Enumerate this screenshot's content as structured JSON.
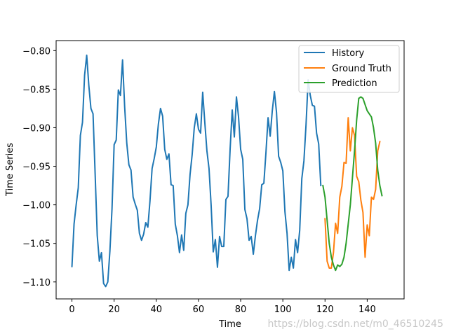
{
  "chart_data": {
    "type": "line",
    "title": "",
    "xlabel": "Time",
    "ylabel": "Time Series",
    "xlim": [
      -7.5,
      157.5
    ],
    "ylim": [
      -1.122,
      -0.787
    ],
    "x_ticks": [
      0,
      20,
      40,
      60,
      80,
      100,
      120,
      140
    ],
    "x_tick_labels": [
      "0",
      "20",
      "40",
      "60",
      "80",
      "100",
      "120",
      "140"
    ],
    "y_ticks": [
      -0.8,
      -0.85,
      -0.9,
      -0.95,
      -1.0,
      -1.05,
      -1.1
    ],
    "y_tick_labels": [
      "−0.80",
      "−0.85",
      "−0.90",
      "−0.95",
      "−1.00",
      "−1.05",
      "−1.10"
    ],
    "legend_position": "top-right",
    "grid": false,
    "series": [
      {
        "name": "History",
        "color": "#1f77b4",
        "x_start": 0,
        "values": [
          -1.08,
          -1.025,
          -1.0,
          -0.978,
          -0.91,
          -0.893,
          -0.832,
          -0.806,
          -0.845,
          -0.875,
          -0.882,
          -0.96,
          -1.04,
          -1.073,
          -1.062,
          -1.102,
          -1.106,
          -1.1,
          -1.06,
          -1.005,
          -0.922,
          -0.916,
          -0.851,
          -0.858,
          -0.812,
          -0.873,
          -0.92,
          -0.948,
          -0.955,
          -0.99,
          -0.999,
          -1.007,
          -1.037,
          -1.046,
          -1.038,
          -1.023,
          -1.029,
          -0.995,
          -0.953,
          -0.94,
          -0.925,
          -0.895,
          -0.875,
          -0.885,
          -0.928,
          -0.941,
          -0.934,
          -0.974,
          -0.975,
          -1.025,
          -1.04,
          -1.062,
          -1.039,
          -1.059,
          -1.011,
          -1.0,
          -0.961,
          -0.935,
          -0.9,
          -0.882,
          -0.902,
          -0.907,
          -0.854,
          -0.893,
          -0.93,
          -0.953,
          -1.001,
          -1.061,
          -1.045,
          -1.081,
          -1.041,
          -1.054,
          -1.054,
          -0.993,
          -0.989,
          -0.928,
          -0.877,
          -0.912,
          -0.86,
          -0.886,
          -0.928,
          -0.941,
          -1.006,
          -1.018,
          -1.046,
          -1.041,
          -1.064,
          -1.04,
          -1.02,
          -1.005,
          -0.974,
          -0.972,
          -0.932,
          -0.887,
          -0.911,
          -0.878,
          -0.853,
          -0.88,
          -0.937,
          -0.945,
          -0.956,
          -1.009,
          -1.037,
          -1.085,
          -1.068,
          -1.082,
          -1.045,
          -1.062,
          -1.033,
          -0.966,
          -0.943,
          -0.896,
          -0.838,
          -0.858,
          -0.871,
          -0.872,
          -0.907,
          -0.921,
          -0.975
        ]
      },
      {
        "name": "Ground Truth",
        "color": "#ff7f0e",
        "x_start": 120,
        "values": [
          -1.018,
          -1.073,
          -1.082,
          -1.082,
          -1.062,
          -1.024,
          -1.037,
          -0.99,
          -0.976,
          -0.945,
          -0.946,
          -0.887,
          -0.93,
          -0.9,
          -0.91,
          -0.963,
          -0.97,
          -0.994,
          -1.01,
          -1.068,
          -1.026,
          -1.04,
          -0.99,
          -0.993,
          -0.98,
          -0.93,
          -0.918
        ]
      },
      {
        "name": "Prediction",
        "color": "#2ca02c",
        "x_start": 119,
        "values": [
          -0.975,
          -0.99,
          -1.02,
          -1.05,
          -1.068,
          -1.078,
          -1.085,
          -1.078,
          -1.08,
          -1.077,
          -1.068,
          -1.05,
          -1.025,
          -1.0,
          -0.965,
          -0.93,
          -0.89,
          -0.862,
          -0.86,
          -0.862,
          -0.87,
          -0.878,
          -0.882,
          -0.886,
          -0.9,
          -0.92,
          -0.955,
          -0.975,
          -0.988
        ]
      }
    ]
  },
  "watermark": {
    "text": "https://blog.csdn.net/m0_46510245"
  }
}
